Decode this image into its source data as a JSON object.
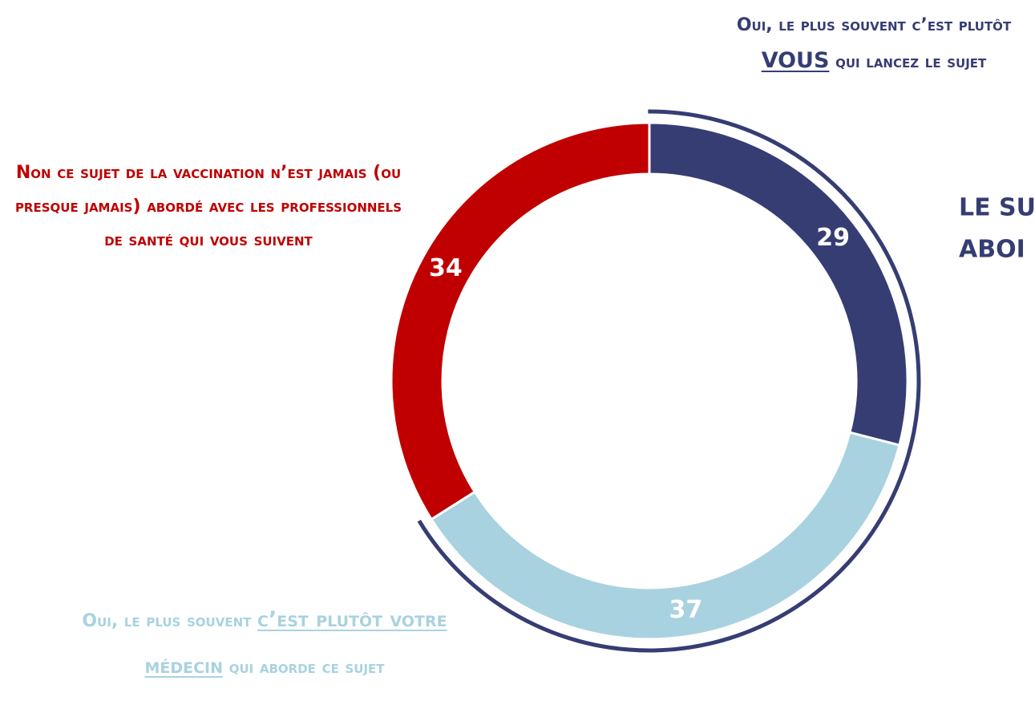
{
  "chart_data": {
    "type": "donut",
    "series": [
      {
        "color": "#363d73",
        "label_color": "#363d73",
        "value": 29,
        "label_parts": [
          {
            "text": "Oui, le plus souvent c’est plutôt "
          },
          {
            "text": "VOUS",
            "underline": true
          },
          {
            "text": " qui lancez le sujet"
          }
        ]
      },
      {
        "color": "#a9d2e0",
        "label_color": "#a9d2e0",
        "value": 37,
        "label_parts": [
          {
            "text": "Oui, le plus souvent "
          },
          {
            "text": "c’est plutôt votre médecin",
            "underline": true
          },
          {
            "text": " qui aborde ce sujet"
          }
        ]
      },
      {
        "color": "#c00000",
        "label_color": "#c00000",
        "value": 34,
        "label_parts": [
          {
            "text": "Non ce sujet de la vaccination n’est jamais (ou presque jamais) abordé avec les professionnels de santé qui vous suivent"
          }
        ]
      }
    ],
    "bracket_series": [
      0,
      1
    ],
    "bracket_color": "#363d73",
    "annotations": [
      "LE SU",
      "ABOI"
    ],
    "annotation_color": "#363d73"
  }
}
